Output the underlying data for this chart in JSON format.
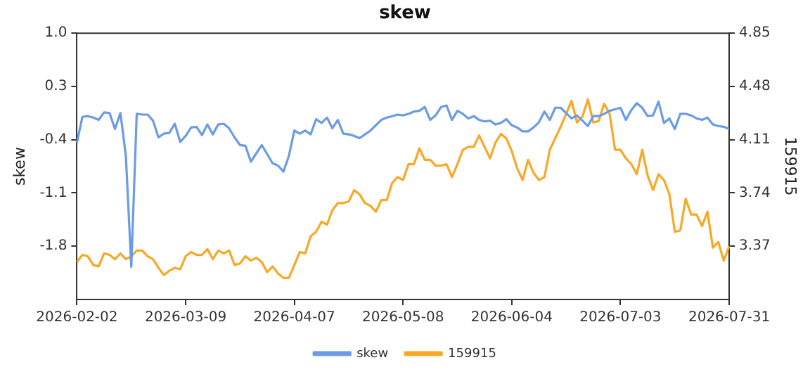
{
  "chart_data": {
    "type": "line",
    "title": "skew",
    "ylabel": "skew",
    "y2label": "159915",
    "categories": [
      "2026-02-02",
      null,
      null,
      null,
      null,
      null,
      null,
      null,
      null,
      null,
      null,
      null,
      null,
      null,
      null,
      null,
      null,
      null,
      null,
      null,
      "2026-03-09",
      null,
      null,
      null,
      null,
      null,
      null,
      null,
      null,
      null,
      null,
      null,
      null,
      null,
      null,
      null,
      null,
      null,
      null,
      null,
      "2026-04-07",
      null,
      null,
      null,
      null,
      null,
      null,
      null,
      null,
      null,
      null,
      null,
      null,
      null,
      null,
      null,
      null,
      null,
      null,
      null,
      "2026-05-08",
      null,
      null,
      null,
      null,
      null,
      null,
      null,
      null,
      null,
      null,
      null,
      null,
      null,
      null,
      null,
      null,
      null,
      null,
      null,
      "2026-06-04",
      null,
      null,
      null,
      null,
      null,
      null,
      null,
      null,
      null,
      null,
      null,
      null,
      null,
      null,
      null,
      null,
      null,
      null,
      null,
      "2026-07-03",
      null,
      null,
      null,
      null,
      null,
      null,
      null,
      null,
      null,
      null,
      null,
      null,
      null,
      null,
      null,
      null,
      null,
      null,
      null,
      "2026-07-31"
    ],
    "series": [
      {
        "name": "skew",
        "color": "#6a9be6",
        "values": [
          -0.44,
          -0.1,
          -0.09,
          -0.11,
          -0.14,
          -0.04,
          -0.05,
          -0.26,
          -0.05,
          -0.61,
          -2.07,
          -0.06,
          -0.07,
          -0.07,
          -0.15,
          -0.37,
          -0.32,
          -0.31,
          -0.19,
          -0.43,
          -0.35,
          -0.24,
          -0.23,
          -0.34,
          -0.2,
          -0.33,
          -0.2,
          -0.19,
          -0.25,
          -0.37,
          -0.47,
          -0.48,
          -0.69,
          -0.58,
          -0.47,
          -0.59,
          -0.71,
          -0.74,
          -0.82,
          -0.61,
          -0.28,
          -0.32,
          -0.28,
          -0.33,
          -0.13,
          -0.18,
          -0.11,
          -0.25,
          -0.14,
          -0.32,
          -0.33,
          -0.35,
          -0.38,
          -0.33,
          -0.28,
          -0.21,
          -0.14,
          -0.11,
          -0.09,
          -0.07,
          -0.08,
          -0.06,
          -0.03,
          -0.02,
          0.03,
          -0.14,
          -0.08,
          0.03,
          0.05,
          -0.14,
          -0.02,
          -0.06,
          -0.12,
          -0.09,
          -0.14,
          -0.16,
          -0.15,
          -0.2,
          -0.18,
          -0.13,
          -0.21,
          -0.24,
          -0.29,
          -0.29,
          -0.24,
          -0.17,
          -0.03,
          -0.14,
          0.02,
          0.02,
          -0.05,
          -0.12,
          -0.08,
          -0.15,
          -0.22,
          -0.09,
          -0.09,
          -0.06,
          -0.02,
          0.0,
          0.02,
          -0.14,
          -0.01,
          0.08,
          0.02,
          -0.09,
          -0.08,
          0.1,
          -0.18,
          -0.12,
          -0.26,
          -0.06,
          -0.06,
          -0.08,
          -0.12,
          -0.14,
          -0.11,
          -0.2,
          -0.22,
          -0.23,
          -0.26
        ]
      },
      {
        "name": "159915",
        "color": "#f9a825",
        "axis": "y2",
        "values": [
          3.26,
          3.31,
          3.3,
          3.24,
          3.23,
          3.32,
          3.31,
          3.28,
          3.32,
          3.28,
          3.3,
          3.34,
          3.34,
          3.3,
          3.28,
          3.22,
          3.17,
          3.2,
          3.22,
          3.21,
          3.3,
          3.33,
          3.31,
          3.31,
          3.35,
          3.28,
          3.34,
          3.32,
          3.34,
          3.24,
          3.25,
          3.3,
          3.27,
          3.29,
          3.26,
          3.19,
          3.23,
          3.18,
          3.15,
          3.15,
          3.24,
          3.33,
          3.32,
          3.44,
          3.47,
          3.54,
          3.52,
          3.62,
          3.67,
          3.67,
          3.68,
          3.76,
          3.73,
          3.67,
          3.65,
          3.61,
          3.69,
          3.69,
          3.81,
          3.85,
          3.83,
          3.94,
          3.94,
          4.05,
          3.97,
          3.97,
          3.93,
          3.93,
          3.94,
          3.85,
          3.94,
          4.04,
          4.06,
          4.06,
          4.14,
          4.06,
          3.98,
          4.09,
          4.15,
          4.12,
          4.03,
          3.91,
          3.83,
          3.97,
          3.88,
          3.83,
          3.85,
          4.04,
          4.12,
          4.2,
          4.29,
          4.38,
          4.23,
          4.27,
          4.39,
          4.23,
          4.24,
          4.36,
          4.29,
          4.04,
          4.04,
          3.98,
          3.94,
          3.87,
          4.04,
          3.86,
          3.76,
          3.87,
          3.83,
          3.73,
          3.47,
          3.48,
          3.7,
          3.59,
          3.59,
          3.51,
          3.61,
          3.36,
          3.4,
          3.27,
          3.37
        ]
      }
    ],
    "ylim": [
      -2.5,
      1.0
    ],
    "yticks": [
      {
        "value": 1.0,
        "label": "1.0"
      },
      0.3,
      -0.4,
      -1.1,
      -1.8
    ],
    "y2lim": [
      3.0,
      4.85
    ],
    "y2ticks": [
      3.37,
      3.74,
      4.11,
      4.48,
      4.85
    ],
    "grid": false,
    "legend": "bottom",
    "marker": "none",
    "line_style": "solid"
  }
}
